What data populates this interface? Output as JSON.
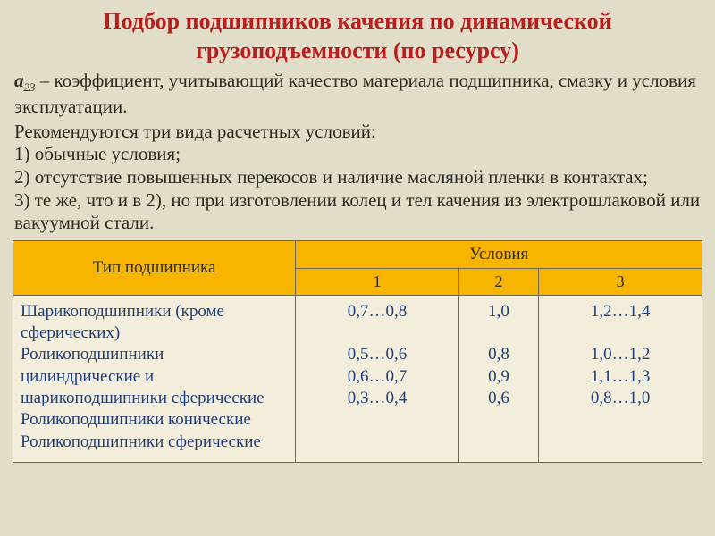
{
  "colors": {
    "slide_bg": "#e2ddc8",
    "title": "#b71f1f",
    "body_text": "#2e2b24",
    "table_head_bg": "#f7b500",
    "table_border": "#6f6a58",
    "table_body_bg": "#f2eedb",
    "table_row_text": "#1f3e7a"
  },
  "title": "Подбор подшипников качения по динамической грузоподъемности (по ресурсу)",
  "coef": {
    "symbol": "a",
    "subscript": "23",
    "dash": " – ",
    "desc": "коэффициент, учитывающий качество материала подшипника, смазку и условия эксплуатации."
  },
  "lines": {
    "intro": "Рекомендуются три вида расчетных условий:",
    "c1": "1) обычные условия;",
    "c2": "2) отсутствие повышенных перекосов и наличие масляной пленки в контактах;",
    "c3": "3) те же, что и в 2), но при изготовлении колец и тел качения из электрошлаковой или вакуумной стали."
  },
  "table": {
    "type_header": "Тип подшипника",
    "cond_header": "Условия",
    "cond_labels": [
      "1",
      "2",
      "3"
    ],
    "columns_width_pct": [
      41,
      19.67,
      19.67,
      19.67
    ],
    "head_fontsize": 19,
    "body_fontsize": 19,
    "rows": [
      {
        "name": "Шарикоподшипники (кроме сферических)",
        "v": [
          "0,7…0,8",
          "1,0",
          "1,2…1,4"
        ]
      },
      {
        "name": "Роликоподшипники цилиндрические и шарикоподшипники сферические",
        "v": [
          "0,5…0,6",
          "0,8",
          "1,0…1,2"
        ]
      },
      {
        "name": "Роликоподшипники конические",
        "v": [
          "0,6…0,7",
          "0,9",
          "1,1…1,3"
        ]
      },
      {
        "name": "Роликоподшипники сферические",
        "v": [
          "0,3…0,4",
          "0,6",
          "0,8…1,0"
        ]
      }
    ]
  }
}
